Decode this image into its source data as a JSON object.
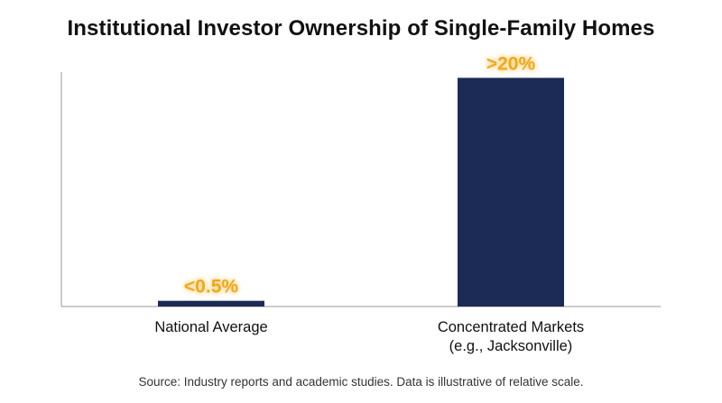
{
  "title": "Institutional Investor Ownership of Single-Family Homes",
  "source_note": "Source: Industry reports and academic studies. Data is illustrative of relative scale.",
  "colors": {
    "bar": "#1b2b55",
    "label": "#f0a81c",
    "label_glow": "#f7d37a",
    "axis": "#9a9a9a"
  },
  "chart_data": {
    "type": "bar",
    "title": "Institutional Investor Ownership of Single-Family Homes",
    "xlabel": "",
    "ylabel": "",
    "ylim": [
      0,
      20.5
    ],
    "grid": false,
    "legend": "none",
    "categories": [
      [
        "National Average"
      ],
      [
        "Concentrated Markets",
        "(e.g., Jacksonville)"
      ]
    ],
    "values": [
      0.5,
      20
    ],
    "data_labels": [
      "<0.5%",
      ">20%"
    ]
  }
}
